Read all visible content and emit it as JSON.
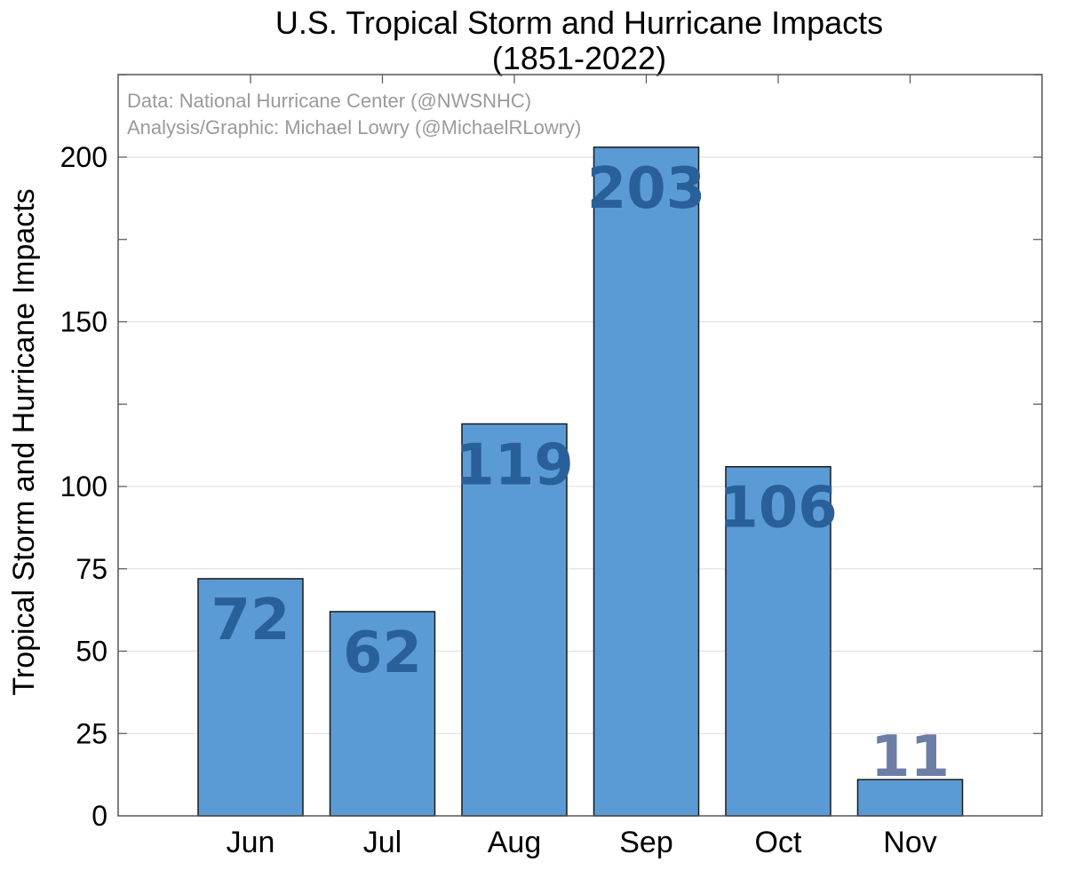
{
  "chart_data": {
    "type": "bar",
    "title_line1": "U.S. Tropical Storm and Hurricane Impacts",
    "title_line2": "(1851-2022)",
    "credit_line1": "Data: National Hurricane Center (@NWSNHC)",
    "credit_line2": "Analysis/Graphic: Michael Lowry (@MichaelRLowry)",
    "xlabel": "",
    "ylabel": "Tropical Storm and Hurricane Impacts",
    "categories": [
      "Jun",
      "Jul",
      "Aug",
      "Sep",
      "Oct",
      "Nov"
    ],
    "values": [
      72,
      62,
      119,
      203,
      106,
      11
    ],
    "value_labels": [
      "72",
      "62",
      "119",
      "203",
      "106",
      "11"
    ],
    "ylim": [
      0,
      225
    ],
    "yticks": [
      0,
      25,
      50,
      75,
      100,
      150,
      200
    ],
    "ytick_labels": [
      "0",
      "25",
      "50",
      "75",
      "100",
      "150",
      "200"
    ],
    "grid": true,
    "colors": {
      "bar": "#5b9bd5",
      "bar_edge": "#1a1a1a",
      "label": "#2a6099",
      "label_small": "#6d7ea6",
      "grid": "#dddddd",
      "axis": "#555555"
    }
  }
}
